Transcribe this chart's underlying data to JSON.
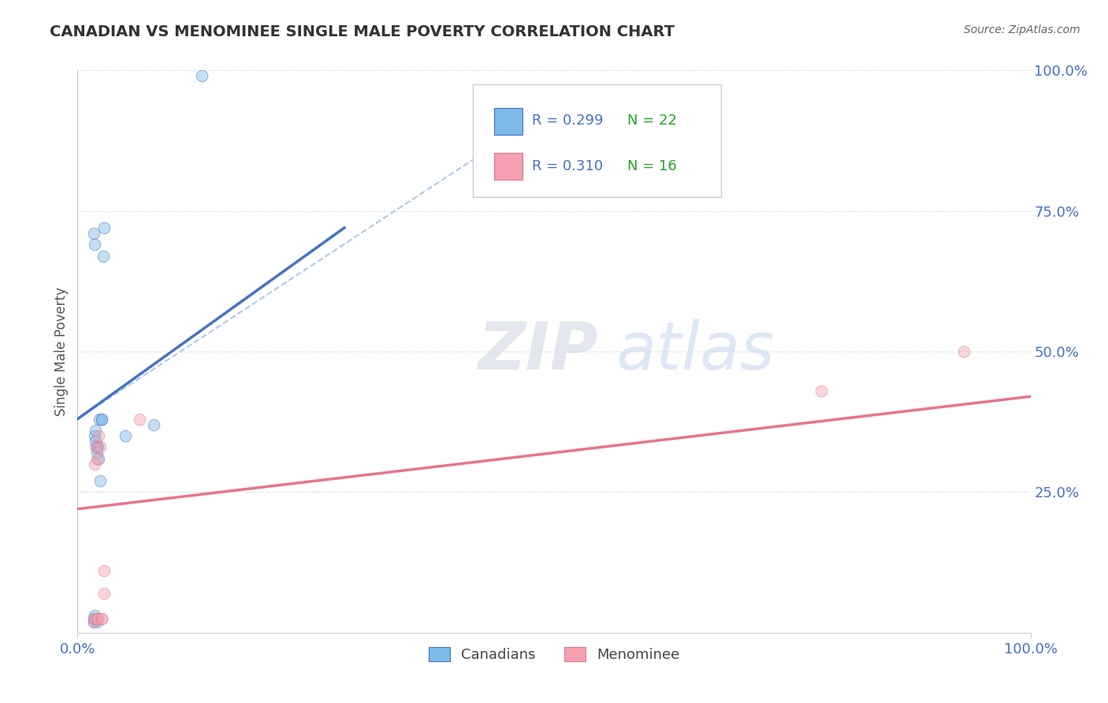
{
  "title": "CANADIAN VS MENOMINEE SINGLE MALE POVERTY CORRELATION CHART",
  "source": "Source: ZipAtlas.com",
  "ylabel": "Single Male Poverty",
  "ylabel_right_ticks": [
    "100.0%",
    "75.0%",
    "50.0%",
    "25.0%"
  ],
  "ylabel_right_positions": [
    100.0,
    75.0,
    50.0,
    25.0
  ],
  "r_canadian": 0.299,
  "n_canadian": 22,
  "r_menominee": 0.31,
  "n_menominee": 16,
  "canadian_color": "#7cb9e8",
  "menominee_color": "#f4a0b0",
  "trend_canadian_color": "#4472C4",
  "trend_menominee_color": "#E8748A",
  "dashed_line_color": "#b0c8e8",
  "legend_r_color": "#4472C4",
  "legend_n_color": "#22aa22",
  "canadians_x": [
    1.7,
    1.7,
    1.8,
    1.8,
    1.9,
    1.9,
    2.0,
    2.0,
    2.1,
    2.2,
    2.3,
    2.4,
    2.5,
    2.5,
    2.7,
    2.8,
    5.0,
    8.0,
    13.0,
    1.7,
    1.8,
    2.0
  ],
  "canadians_y": [
    2.0,
    2.5,
    3.0,
    35.0,
    34.0,
    36.0,
    2.0,
    33.0,
    33.0,
    31.0,
    38.0,
    27.0,
    38.0,
    38.0,
    67.0,
    72.0,
    35.0,
    37.0,
    99.0,
    71.0,
    69.0,
    32.0
  ],
  "menominee_x": [
    1.7,
    1.8,
    1.8,
    1.9,
    2.0,
    2.0,
    2.1,
    2.2,
    2.4,
    2.5,
    2.5,
    2.8,
    2.8,
    6.5,
    78.0,
    93.0
  ],
  "menominee_y": [
    2.0,
    2.5,
    30.0,
    33.0,
    2.5,
    31.0,
    2.5,
    35.0,
    33.0,
    2.5,
    2.5,
    11.0,
    7.0,
    38.0,
    43.0,
    50.0
  ],
  "xlim": [
    0.0,
    100.0
  ],
  "ylim": [
    0.0,
    100.0
  ],
  "marker_size": 110,
  "marker_alpha": 0.45,
  "canadian_trend_x0": 0.0,
  "canadian_trend_y0": 38.0,
  "canadian_trend_x1": 28.0,
  "canadian_trend_y1": 72.0,
  "canadian_dash_x0": 0.0,
  "canadian_dash_y0": 38.0,
  "canadian_dash_x1": 45.0,
  "canadian_dash_y1": 88.0,
  "menominee_trend_x0": 0.0,
  "menominee_trend_y0": 22.0,
  "menominee_trend_x1": 100.0,
  "menominee_trend_y1": 42.0
}
